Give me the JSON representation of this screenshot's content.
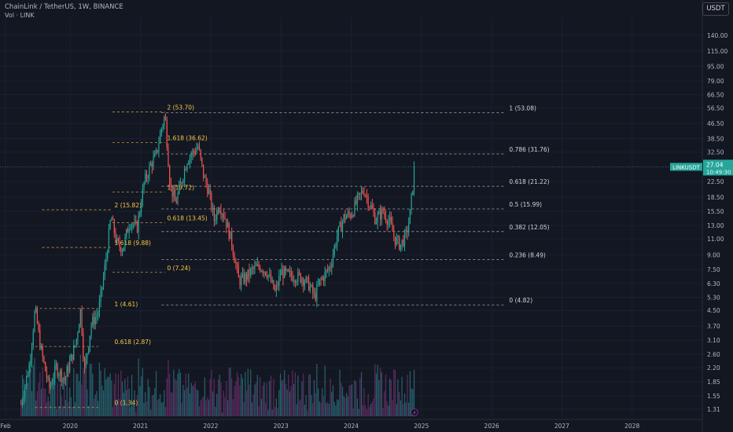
{
  "header": {
    "title": "ChainLink / TetherUS, 1W, BINANCE",
    "volume_label": "Vol · LINK",
    "currency_button": "USDT"
  },
  "price_tag": {
    "symbol": "LINKUSDT",
    "price": "27.04",
    "countdown": "10:49:30"
  },
  "axis": {
    "price_ticks": [
      140.0,
      115.0,
      95.0,
      79.0,
      66.5,
      56.5,
      46.5,
      38.5,
      32.5,
      27.04,
      22.5,
      18.5,
      15.5,
      13.0,
      11.0,
      9.0,
      7.5,
      6.3,
      5.3,
      4.5,
      3.7,
      3.1,
      2.6,
      2.2,
      1.85,
      1.55,
      1.31
    ],
    "price_tick_labels": [
      "140.00",
      "115.00",
      "95.00",
      "79.00",
      "66.50",
      "56.50",
      "46.50",
      "38.50",
      "32.50",
      "",
      "22.50",
      "18.50",
      "15.50",
      "13.00",
      "11.00",
      "9.00",
      "7.50",
      "6.30",
      "5.30",
      "4.50",
      "3.70",
      "3.10",
      "2.60",
      "2.20",
      "1.85",
      "1.55",
      "1.31"
    ],
    "time_labels": [
      "Feb",
      "2020",
      "2021",
      "2022",
      "2023",
      "2024",
      "2025",
      "2026",
      "2027",
      "2028"
    ],
    "time_values": [
      2019.08,
      2020.0,
      2021.0,
      2022.0,
      2023.0,
      2024.0,
      2025.0,
      2026.0,
      2027.0,
      2028.0
    ]
  },
  "chart_data": {
    "type": "candlestick",
    "scale": "log",
    "ylim": [
      1.2,
      175
    ],
    "xlim": [
      2019.0,
      2029.0
    ],
    "colors": {
      "up": "#26a69a",
      "down": "#ef5350",
      "fib_white": "#d1d4dc",
      "fib_yellow": "#f5c842",
      "vol_up": "#2a6f7a",
      "vol_down": "#6b2f6b",
      "tag": "#26a69a"
    },
    "series_close": [
      [
        2019.3,
        1.4
      ],
      [
        2019.42,
        2.3
      ],
      [
        2019.5,
        4.6
      ],
      [
        2019.58,
        2.8
      ],
      [
        2019.7,
        1.7
      ],
      [
        2019.8,
        2.2
      ],
      [
        2019.92,
        1.9
      ],
      [
        2020.08,
        3.0
      ],
      [
        2020.15,
        4.6
      ],
      [
        2020.2,
        2.1
      ],
      [
        2020.3,
        3.8
      ],
      [
        2020.4,
        4.4
      ],
      [
        2020.5,
        8.0
      ],
      [
        2020.58,
        14.5
      ],
      [
        2020.67,
        10.2
      ],
      [
        2020.75,
        9.8
      ],
      [
        2020.85,
        13.8
      ],
      [
        2020.95,
        12.5
      ],
      [
        2021.05,
        22.0
      ],
      [
        2021.15,
        28.0
      ],
      [
        2021.22,
        31.0
      ],
      [
        2021.3,
        44.0
      ],
      [
        2021.35,
        52.0
      ],
      [
        2021.42,
        22.0
      ],
      [
        2021.5,
        17.0
      ],
      [
        2021.58,
        22.5
      ],
      [
        2021.67,
        30.0
      ],
      [
        2021.75,
        32.5
      ],
      [
        2021.82,
        35.0
      ],
      [
        2021.9,
        24.0
      ],
      [
        2021.97,
        20.0
      ],
      [
        2022.05,
        14.0
      ],
      [
        2022.12,
        17.0
      ],
      [
        2022.2,
        14.5
      ],
      [
        2022.3,
        10.5
      ],
      [
        2022.4,
        6.5
      ],
      [
        2022.5,
        6.8
      ],
      [
        2022.6,
        7.5
      ],
      [
        2022.7,
        7.8
      ],
      [
        2022.8,
        7.3
      ],
      [
        2022.92,
        5.6
      ],
      [
        2023.0,
        7.3
      ],
      [
        2023.1,
        7.0
      ],
      [
        2023.2,
        6.9
      ],
      [
        2023.3,
        6.8
      ],
      [
        2023.4,
        6.2
      ],
      [
        2023.48,
        5.3
      ],
      [
        2023.55,
        6.4
      ],
      [
        2023.62,
        7.0
      ],
      [
        2023.7,
        7.8
      ],
      [
        2023.8,
        11.5
      ],
      [
        2023.9,
        14.5
      ],
      [
        2024.0,
        15.0
      ],
      [
        2024.08,
        17.5
      ],
      [
        2024.18,
        20.5
      ],
      [
        2024.25,
        17.5
      ],
      [
        2024.35,
        14.0
      ],
      [
        2024.45,
        15.5
      ],
      [
        2024.55,
        13.5
      ],
      [
        2024.62,
        11.0
      ],
      [
        2024.7,
        10.2
      ],
      [
        2024.78,
        11.5
      ],
      [
        2024.83,
        14.0
      ],
      [
        2024.87,
        20.0
      ],
      [
        2024.9,
        27.04
      ]
    ],
    "fib_sets": [
      {
        "levels": [
          {
            "label": "1 (53.08)",
            "value": 53.08
          },
          {
            "label": "0.786 (31.76)",
            "value": 31.76
          },
          {
            "label": "0.618 (21.22)",
            "value": 21.22
          },
          {
            "label": "0.5 (15.99)",
            "value": 15.99
          },
          {
            "label": "0.382 (12.05)",
            "value": 12.05
          },
          {
            "label": "0.236 (8.49)",
            "value": 8.49
          },
          {
            "label": "0 (4.82)",
            "value": 4.82
          }
        ]
      },
      {
        "levels": [
          {
            "label": "2 (53.70)",
            "value": 53.7
          },
          {
            "label": "1.618 (36.62)",
            "value": 36.62
          },
          {
            "label": "1 (19.72)",
            "value": 19.72
          },
          {
            "label": "0.618 (13.45)",
            "value": 13.45
          },
          {
            "label": "0 (7.24)",
            "value": 7.24
          }
        ]
      },
      {
        "levels": [
          {
            "label": "2 (15.82)",
            "value": 15.82
          },
          {
            "label": "1.618 (9.88)",
            "value": 9.88
          }
        ]
      },
      {
        "levels": [
          {
            "label": "1 (4.61)",
            "value": 4.61
          },
          {
            "label": "0.618 (2.87)",
            "value": 2.87
          },
          {
            "label": "0 (1.34)",
            "value": 1.34
          }
        ]
      }
    ]
  }
}
